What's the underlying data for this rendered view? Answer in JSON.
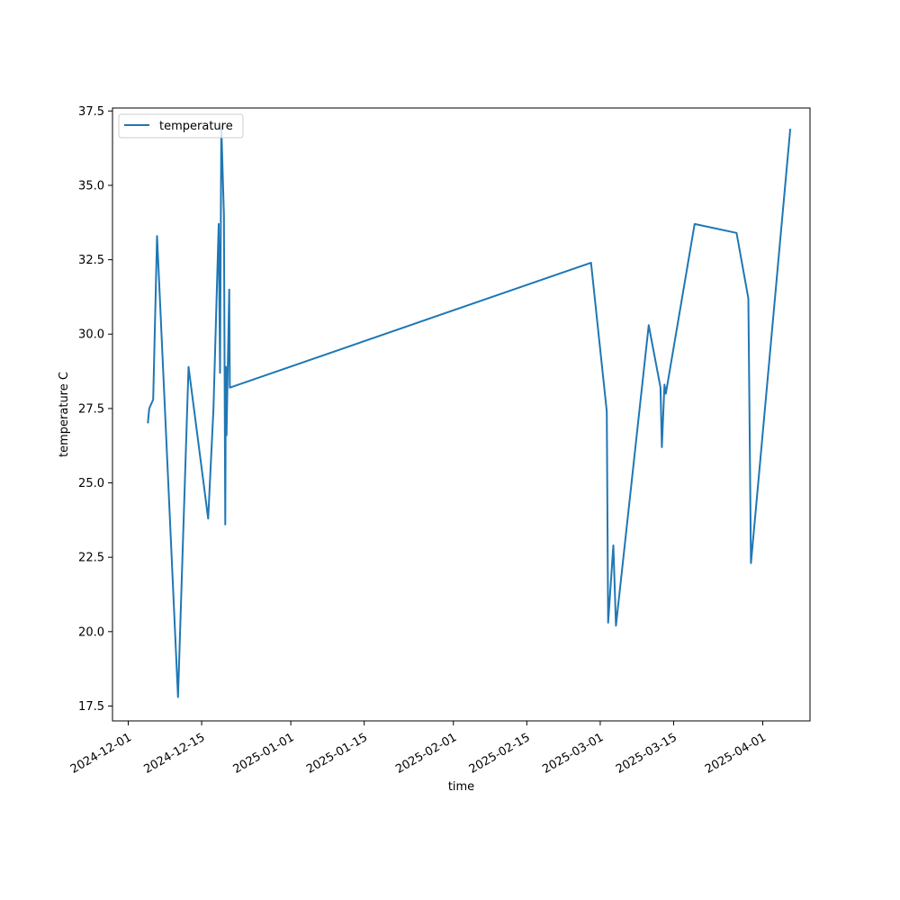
{
  "chart_data": {
    "type": "line",
    "title": "",
    "xlabel": "time",
    "ylabel": "temperature C",
    "xlim": [
      "2024-11-28",
      "2025-04-10"
    ],
    "ylim": [
      17.0,
      37.6
    ],
    "grid": false,
    "legend": {
      "placement": "top-left",
      "entries": [
        "temperature"
      ]
    },
    "x_ticks": [
      "2024-12-01",
      "2024-12-15",
      "2025-01-01",
      "2025-01-15",
      "2025-02-01",
      "2025-02-15",
      "2025-03-01",
      "2025-03-15",
      "2025-04-01"
    ],
    "y_ticks": [
      "17.5",
      "20.0",
      "22.5",
      "25.0",
      "27.5",
      "30.0",
      "32.5",
      "35.0",
      "37.5"
    ],
    "series": [
      {
        "name": "temperature",
        "color": "#1f77b4",
        "points": [
          {
            "x": "2024-12-04 18:00",
            "y": 27.0
          },
          {
            "x": "2024-12-05 00:00",
            "y": 27.5
          },
          {
            "x": "2024-12-05 18:00",
            "y": 27.8
          },
          {
            "x": "2024-12-06 12:00",
            "y": 33.3
          },
          {
            "x": "2024-12-10 12:00",
            "y": 17.8
          },
          {
            "x": "2024-12-11 06:00",
            "y": 22.0
          },
          {
            "x": "2024-12-12 12:00",
            "y": 28.9
          },
          {
            "x": "2024-12-16 06:00",
            "y": 23.8
          },
          {
            "x": "2024-12-17 06:00",
            "y": 27.5
          },
          {
            "x": "2024-12-18 06:00",
            "y": 33.7
          },
          {
            "x": "2024-12-18 12:00",
            "y": 28.7
          },
          {
            "x": "2024-12-18 18:00",
            "y": 37.0
          },
          {
            "x": "2024-12-19 06:00",
            "y": 34.0
          },
          {
            "x": "2024-12-19 12:00",
            "y": 23.6
          },
          {
            "x": "2024-12-19 15:00",
            "y": 28.9
          },
          {
            "x": "2024-12-19 18:00",
            "y": 26.6
          },
          {
            "x": "2024-12-20 06:00",
            "y": 31.5
          },
          {
            "x": "2024-12-20 09:00",
            "y": 28.2
          },
          {
            "x": "2025-02-27 06:00",
            "y": 32.4
          },
          {
            "x": "2025-03-02 06:00",
            "y": 27.4
          },
          {
            "x": "2025-03-02 12:00",
            "y": 20.3
          },
          {
            "x": "2025-03-03 12:00",
            "y": 22.9
          },
          {
            "x": "2025-03-04 00:00",
            "y": 20.2
          },
          {
            "x": "2025-03-10 06:00",
            "y": 30.3
          },
          {
            "x": "2025-03-12 12:00",
            "y": 28.2
          },
          {
            "x": "2025-03-12 18:00",
            "y": 26.2
          },
          {
            "x": "2025-03-13 06:00",
            "y": 28.3
          },
          {
            "x": "2025-03-13 12:00",
            "y": 28.0
          },
          {
            "x": "2025-03-19 00:00",
            "y": 33.7
          },
          {
            "x": "2025-03-27 00:00",
            "y": 33.4
          },
          {
            "x": "2025-03-29 06:00",
            "y": 31.2
          },
          {
            "x": "2025-03-29 18:00",
            "y": 22.3
          },
          {
            "x": "2025-04-06 06:00",
            "y": 36.9
          }
        ]
      }
    ]
  }
}
